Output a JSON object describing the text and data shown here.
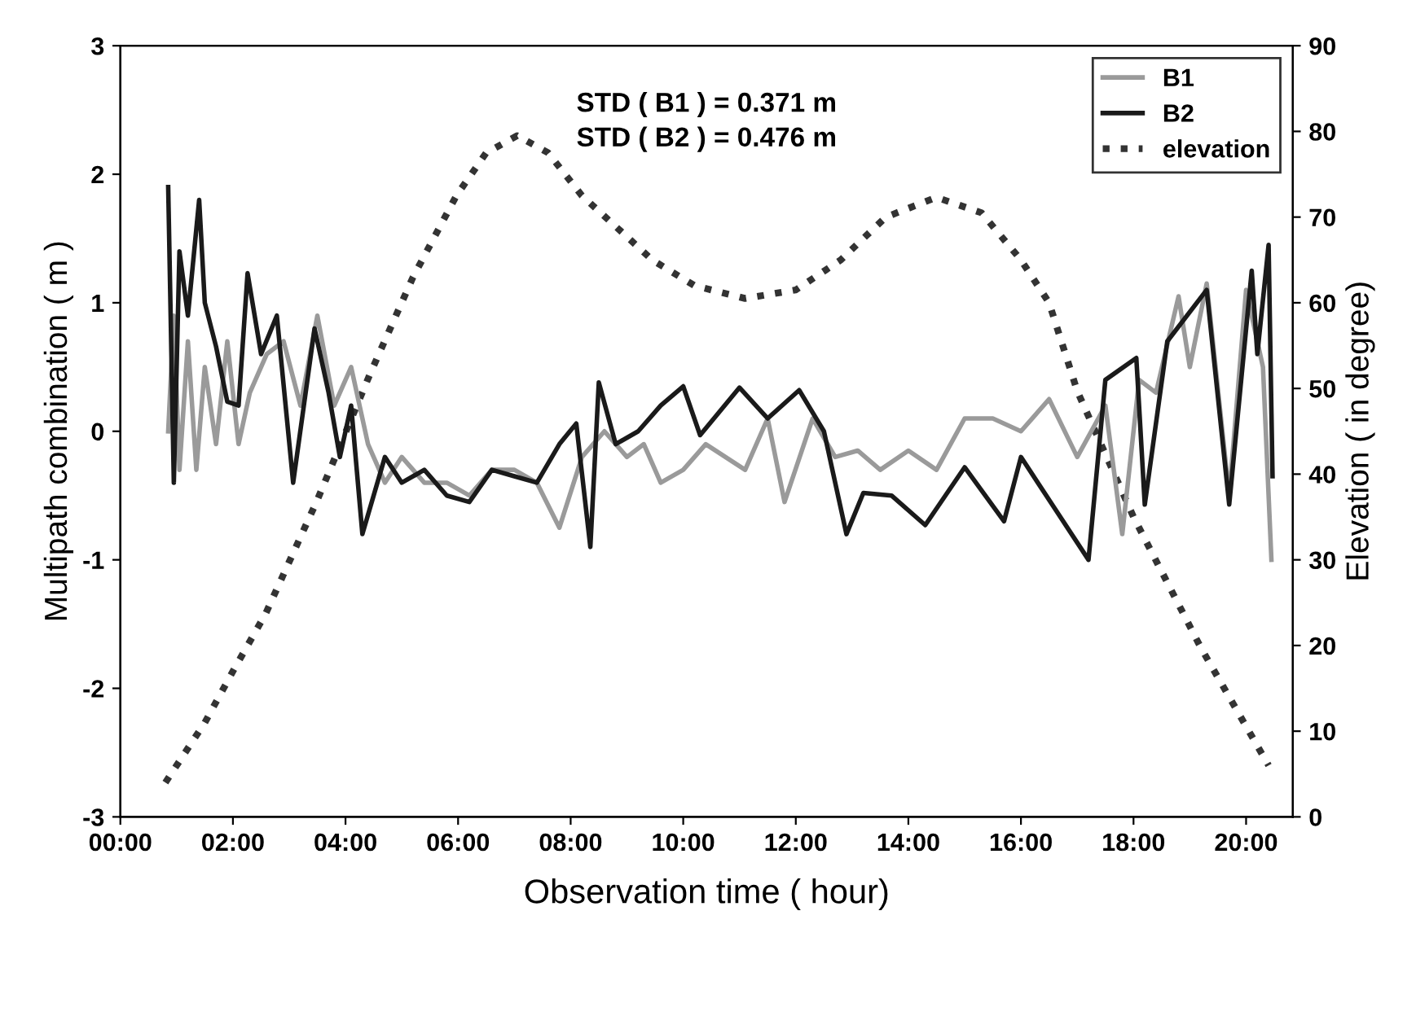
{
  "chart_data": {
    "type": "line",
    "xlabel": "Observation time ( hour)",
    "ylabel": "Multipath combination ( m )",
    "y2label": "Elevation ( in degree)",
    "annotations": [
      "STD ( B1 ) = 0.371 m",
      "STD ( B2 ) = 0.476 m"
    ],
    "xlim": [
      0,
      20.83
    ],
    "ylim": [
      -3,
      3
    ],
    "y2lim": [
      0,
      90
    ],
    "xticks": [
      {
        "value": 0,
        "label": "00:00"
      },
      {
        "value": 2,
        "label": "02:00"
      },
      {
        "value": 4,
        "label": "04:00"
      },
      {
        "value": 6,
        "label": "06:00"
      },
      {
        "value": 8,
        "label": "08:00"
      },
      {
        "value": 10,
        "label": "10:00"
      },
      {
        "value": 12,
        "label": "12:00"
      },
      {
        "value": 14,
        "label": "14:00"
      },
      {
        "value": 16,
        "label": "16:00"
      },
      {
        "value": 18,
        "label": "18:00"
      },
      {
        "value": 20,
        "label": "20:00"
      }
    ],
    "yticks": [
      -3,
      -2,
      -1,
      0,
      1,
      2,
      3
    ],
    "y2ticks": [
      0,
      10,
      20,
      30,
      40,
      50,
      60,
      70,
      80,
      90
    ],
    "grid": false,
    "legend": "top right",
    "marker": "none",
    "series": [
      {
        "name": "B1",
        "color": "#9a9a9a",
        "line_style": "solid",
        "x": [
          0.85,
          0.95,
          1.05,
          1.2,
          1.35,
          1.5,
          1.7,
          1.9,
          2.1,
          2.3,
          2.6,
          2.9,
          3.2,
          3.5,
          3.8,
          4.1,
          4.4,
          4.7,
          5.0,
          5.4,
          5.8,
          6.2,
          6.6,
          7.0,
          7.4,
          7.8,
          8.2,
          8.6,
          9.0,
          9.3,
          9.6,
          10.0,
          10.4,
          11.1,
          11.5,
          11.8,
          12.3,
          12.7,
          13.1,
          13.5,
          14.0,
          14.5,
          15.0,
          15.5,
          16.0,
          16.5,
          17.0,
          17.5,
          17.8,
          18.1,
          18.4,
          18.8,
          19.0,
          19.3,
          19.7,
          20.0,
          20.3,
          20.45
        ],
        "values": [
          0.0,
          0.9,
          -0.3,
          0.7,
          -0.3,
          0.5,
          -0.1,
          0.7,
          -0.1,
          0.3,
          0.6,
          0.7,
          0.2,
          0.9,
          0.2,
          0.5,
          -0.1,
          -0.4,
          -0.2,
          -0.4,
          -0.4,
          -0.5,
          -0.3,
          -0.3,
          -0.4,
          -0.75,
          -0.2,
          0.0,
          -0.2,
          -0.1,
          -0.4,
          -0.3,
          -0.1,
          -0.3,
          0.1,
          -0.55,
          0.1,
          -0.2,
          -0.15,
          -0.3,
          -0.15,
          -0.3,
          0.1,
          0.1,
          0.0,
          0.25,
          -0.2,
          0.2,
          -0.8,
          0.4,
          0.3,
          1.05,
          0.5,
          1.15,
          -0.5,
          1.1,
          0.5,
          -1.0
        ]
      },
      {
        "name": "B2",
        "color": "#1a1a1a",
        "line_style": "solid",
        "x": [
          0.85,
          0.95,
          1.05,
          1.2,
          1.4,
          1.5,
          1.7,
          1.9,
          2.1,
          2.26,
          2.5,
          2.78,
          3.07,
          3.45,
          3.7,
          3.9,
          4.1,
          4.3,
          4.7,
          5.0,
          5.4,
          5.8,
          6.2,
          6.6,
          7.0,
          7.4,
          7.8,
          8.1,
          8.35,
          8.5,
          8.8,
          9.2,
          9.6,
          10.0,
          10.3,
          11.0,
          11.5,
          12.06,
          12.5,
          12.9,
          13.2,
          13.7,
          14.3,
          15.0,
          15.7,
          16.0,
          16.6,
          17.2,
          17.5,
          18.05,
          18.2,
          18.6,
          19.3,
          19.7,
          20.1,
          20.2,
          20.4,
          20.47
        ],
        "values": [
          1.9,
          -0.4,
          1.4,
          0.9,
          1.8,
          1.0,
          0.66,
          0.23,
          0.2,
          1.23,
          0.6,
          0.9,
          -0.4,
          0.8,
          0.3,
          -0.2,
          0.2,
          -0.8,
          -0.2,
          -0.4,
          -0.3,
          -0.5,
          -0.55,
          -0.3,
          -0.35,
          -0.4,
          -0.1,
          0.06,
          -0.9,
          0.38,
          -0.1,
          0.0,
          0.2,
          0.35,
          -0.03,
          0.34,
          0.1,
          0.32,
          0.0,
          -0.8,
          -0.48,
          -0.5,
          -0.73,
          -0.28,
          -0.7,
          -0.2,
          -0.6,
          -1.0,
          0.4,
          0.57,
          -0.57,
          0.7,
          1.1,
          -0.57,
          1.25,
          0.6,
          1.45,
          -0.35
        ]
      },
      {
        "name": "elevation",
        "color": "#333333",
        "line_style": "dotted",
        "axis": "y2",
        "x": [
          0.8,
          1.5,
          2.0,
          2.58,
          3.5,
          4.43,
          5.2,
          5.97,
          6.5,
          7.05,
          7.6,
          8.2,
          9.45,
          10.2,
          11.1,
          12.0,
          12.8,
          13.6,
          14.5,
          15.3,
          16.0,
          16.5,
          17.0,
          18.0,
          19.2,
          20.4
        ],
        "values": [
          4,
          11,
          17,
          23.7,
          37,
          51.6,
          63,
          72.5,
          77.5,
          79.5,
          77.5,
          72.5,
          65,
          62,
          60.5,
          61.5,
          65,
          70,
          72.3,
          70.5,
          65,
          60,
          49.7,
          35,
          19.7,
          6
        ]
      }
    ]
  }
}
